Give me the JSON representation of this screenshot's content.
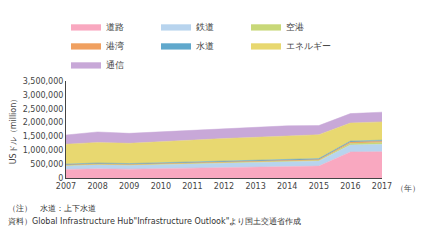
{
  "chart_data": {
    "type": "area",
    "stacked": true,
    "x": [
      2007,
      2008,
      2009,
      2010,
      2011,
      2012,
      2013,
      2014,
      2015,
      2016,
      2017
    ],
    "xlim": [
      2007,
      2017
    ],
    "xticks": [
      2007,
      2008,
      2009,
      2010,
      2011,
      2012,
      2013,
      2014,
      2015,
      2016,
      2017
    ],
    "ylim": [
      0,
      3500000
    ],
    "yticks": [
      0,
      {
        "value": 500000,
        "label": "500,000"
      },
      {
        "value": 1000000,
        "label": "1,000,000"
      },
      {
        "value": 1500000,
        "label": "1,500,000"
      },
      {
        "value": 2000000,
        "label": "2,000,000"
      },
      {
        "value": 2500000,
        "label": "2,500,000"
      },
      {
        "value": 3000000,
        "label": "3,000,000"
      },
      {
        "value": 3500000,
        "label": "3,500,000"
      }
    ],
    "ylabel": "USドル（million）",
    "grid": false,
    "legend": "upper left",
    "annotations": [
      "（年）",
      "（注）　水道：上下水道",
      "資料）Global Infrastructure Hub\"Infrastructure Outlook\"より国土交通省作成"
    ],
    "series": [
      {
        "name": "道路",
        "color": "#f9a8c0",
        "values": [
          310000,
          330000,
          320000,
          340000,
          360000,
          375000,
          390000,
          410000,
          430000,
          940000,
          950000
        ]
      },
      {
        "name": "鉄道",
        "color": "#b8d4ee",
        "values": [
          130000,
          145000,
          138000,
          145000,
          158000,
          163000,
          168000,
          175000,
          185000,
          255000,
          265000
        ]
      },
      {
        "name": "空港",
        "color": "#c8d878",
        "values": [
          18000,
          20000,
          19000,
          20000,
          22000,
          24000,
          25000,
          26000,
          28000,
          58000,
          63000
        ]
      },
      {
        "name": "港湾",
        "color": "#f0a060",
        "values": [
          18000,
          20000,
          18000,
          19000,
          21000,
          22000,
          23000,
          24000,
          25000,
          45000,
          50000
        ]
      },
      {
        "name": "水道",
        "color": "#60a8cc",
        "values": [
          25000,
          27000,
          26000,
          27000,
          29000,
          30000,
          31000,
          32000,
          33000,
          35000,
          37000
        ]
      },
      {
        "name": "エネルギー",
        "color": "#e8d870",
        "values": [
          720000,
          740000,
          730000,
          760000,
          790000,
          810000,
          830000,
          850000,
          860000,
          650000,
          660000
        ]
      },
      {
        "name": "通信",
        "color": "#c8a8d8",
        "values": [
          330000,
          380000,
          360000,
          350000,
          355000,
          355000,
          360000,
          365000,
          330000,
          340000,
          350000
        ]
      }
    ]
  }
}
